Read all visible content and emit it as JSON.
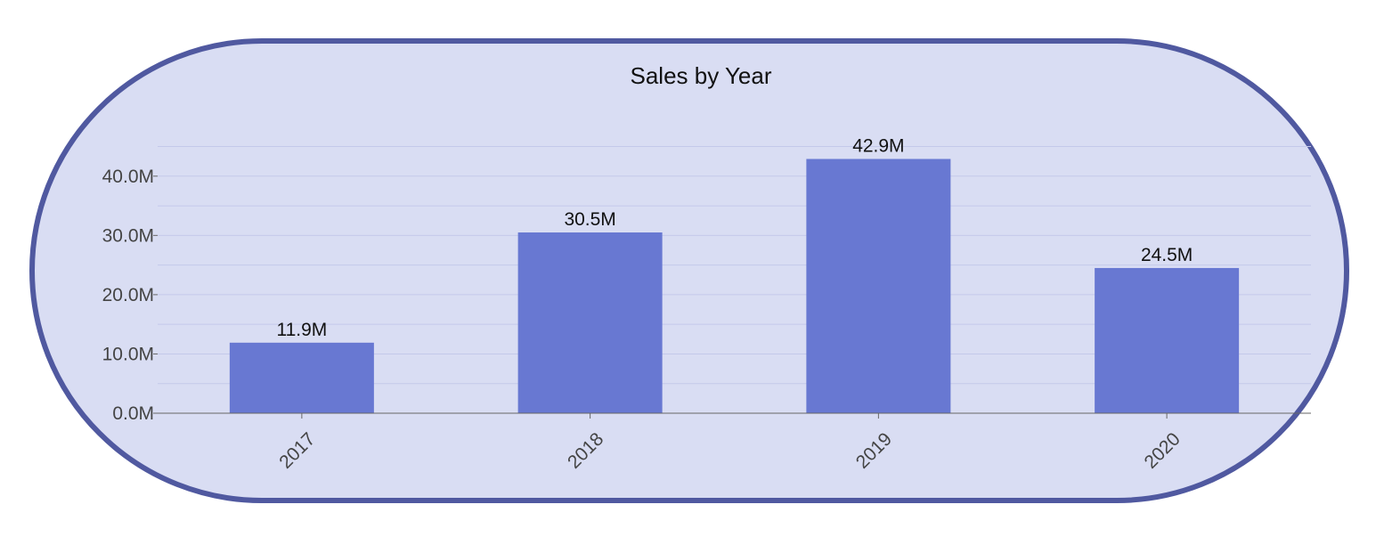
{
  "chart_data": {
    "type": "bar",
    "title": "Sales by Year",
    "xlabel": "",
    "ylabel": "",
    "categories": [
      "2017",
      "2018",
      "2019",
      "2020"
    ],
    "values": [
      11.9,
      30.5,
      42.9,
      24.5
    ],
    "value_unit": "M",
    "value_labels": [
      "11.9M",
      "30.5M",
      "42.9M",
      "24.5M"
    ],
    "yticks": [
      0,
      10,
      20,
      30,
      40
    ],
    "ytick_labels": [
      "0.0M",
      "10.0M",
      "20.0M",
      "30.0M",
      "40.0M"
    ],
    "ylim": [
      0,
      45
    ],
    "grid": true,
    "legend": "none",
    "xtick_rotation_deg": -45
  },
  "colors": {
    "card_background": "#d9ddf3",
    "card_border": "#5059a0",
    "bar": "#6878d2",
    "grid": "#c4c9ea",
    "axis": "#666666"
  }
}
